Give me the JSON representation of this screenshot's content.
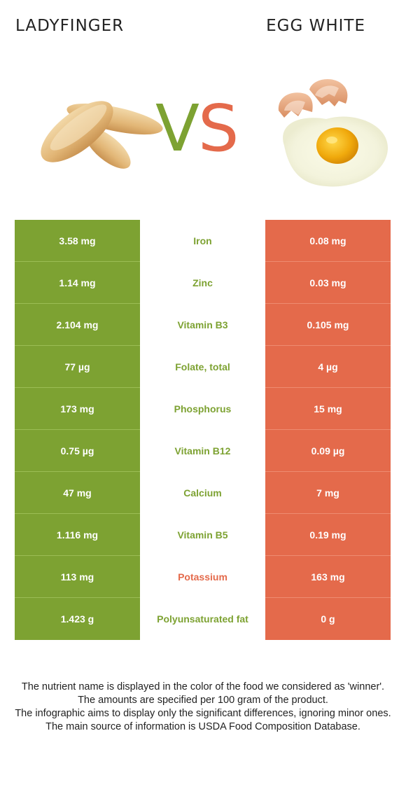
{
  "header": {
    "left_title": "LADYFINGER",
    "right_title": "EGG WHITE",
    "vs_v": "V",
    "vs_s": "S"
  },
  "colors": {
    "left_food": "#7da232",
    "right_food": "#e46a4b"
  },
  "rows": [
    {
      "left": "3.58 mg",
      "nutrient": "Iron",
      "right": "0.08 mg",
      "winner": "left"
    },
    {
      "left": "1.14 mg",
      "nutrient": "Zinc",
      "right": "0.03 mg",
      "winner": "left"
    },
    {
      "left": "2.104 mg",
      "nutrient": "Vitamin B3",
      "right": "0.105 mg",
      "winner": "left"
    },
    {
      "left": "77 µg",
      "nutrient": "Folate, total",
      "right": "4 µg",
      "winner": "left"
    },
    {
      "left": "173 mg",
      "nutrient": "Phosphorus",
      "right": "15 mg",
      "winner": "left"
    },
    {
      "left": "0.75 µg",
      "nutrient": "Vitamin B12",
      "right": "0.09 µg",
      "winner": "left"
    },
    {
      "left": "47 mg",
      "nutrient": "Calcium",
      "right": "7 mg",
      "winner": "left"
    },
    {
      "left": "1.116 mg",
      "nutrient": "Vitamin B5",
      "right": "0.19 mg",
      "winner": "left"
    },
    {
      "left": "113 mg",
      "nutrient": "Potassium",
      "right": "163 mg",
      "winner": "right"
    },
    {
      "left": "1.423 g",
      "nutrient": "Polyunsaturated fat",
      "right": "0 g",
      "winner": "left"
    }
  ],
  "footer": [
    "The nutrient name is displayed in the color of the food we considered as 'winner'.",
    "The amounts are specified per 100 gram of the product.",
    "The infographic aims to display only the significant differences, ignoring minor ones.",
    "The main source of information is USDA Food Composition Database."
  ]
}
